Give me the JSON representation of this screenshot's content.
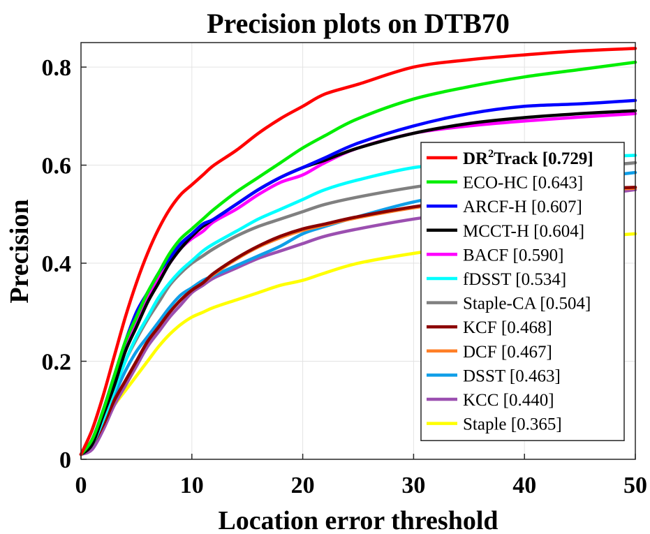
{
  "chart_data": {
    "type": "line",
    "title": "Precision plots on DTB70",
    "xlabel": "Location error threshold",
    "ylabel": "Precision",
    "xlim": [
      0,
      50
    ],
    "ylim": [
      0,
      0.85
    ],
    "xticks": [
      0,
      10,
      20,
      30,
      40,
      50
    ],
    "yticks": [
      0,
      0.2,
      0.4,
      0.6,
      0.8
    ],
    "xtick_labels": [
      "0",
      "10",
      "20",
      "30",
      "40",
      "50"
    ],
    "ytick_labels": [
      "0",
      "0.2",
      "0.4",
      "0.6",
      "0.8"
    ],
    "grid": true,
    "legend_position": "bottom-right",
    "x": [
      0,
      1,
      2,
      3,
      4,
      5,
      6,
      7,
      8,
      9,
      10,
      11,
      12,
      14,
      16,
      18,
      20,
      22,
      25,
      30,
      35,
      40,
      45,
      50
    ],
    "series": [
      {
        "name": "DR²Track [0.729]",
        "legend_main": "DR",
        "legend_sup": "2",
        "legend_rest": "Track [0.729]",
        "bold": true,
        "color": "#ff0000",
        "values": [
          0.01,
          0.06,
          0.13,
          0.21,
          0.29,
          0.36,
          0.42,
          0.47,
          0.51,
          0.54,
          0.56,
          0.58,
          0.6,
          0.63,
          0.665,
          0.695,
          0.72,
          0.745,
          0.765,
          0.8,
          0.815,
          0.825,
          0.833,
          0.838
        ]
      },
      {
        "name": "ECO-HC [0.643]",
        "bold": false,
        "color": "#00ee00",
        "values": [
          0.01,
          0.04,
          0.1,
          0.17,
          0.24,
          0.29,
          0.34,
          0.38,
          0.42,
          0.45,
          0.47,
          0.49,
          0.51,
          0.545,
          0.575,
          0.605,
          0.635,
          0.66,
          0.695,
          0.735,
          0.76,
          0.78,
          0.795,
          0.81
        ]
      },
      {
        "name": "ARCF-H [0.607]",
        "bold": false,
        "color": "#0000ff",
        "values": [
          0.01,
          0.04,
          0.1,
          0.17,
          0.24,
          0.3,
          0.34,
          0.38,
          0.41,
          0.44,
          0.46,
          0.48,
          0.49,
          0.52,
          0.55,
          0.575,
          0.595,
          0.615,
          0.645,
          0.68,
          0.705,
          0.72,
          0.725,
          0.732
        ]
      },
      {
        "name": "MCCT-H [0.604]",
        "bold": false,
        "color": "#000000",
        "values": [
          0.01,
          0.03,
          0.09,
          0.15,
          0.22,
          0.27,
          0.32,
          0.36,
          0.4,
          0.43,
          0.455,
          0.475,
          0.49,
          0.52,
          0.55,
          0.575,
          0.595,
          0.61,
          0.635,
          0.665,
          0.685,
          0.697,
          0.705,
          0.711
        ]
      },
      {
        "name": "BACF [0.590]",
        "bold": false,
        "color": "#ff00ff",
        "values": [
          0.01,
          0.04,
          0.1,
          0.17,
          0.23,
          0.28,
          0.33,
          0.37,
          0.4,
          0.43,
          0.45,
          0.465,
          0.485,
          0.51,
          0.54,
          0.565,
          0.58,
          0.605,
          0.635,
          0.665,
          0.68,
          0.69,
          0.698,
          0.705
        ]
      },
      {
        "name": "fDSST [0.534]",
        "bold": false,
        "color": "#00ffff",
        "values": [
          0.01,
          0.03,
          0.08,
          0.14,
          0.2,
          0.25,
          0.29,
          0.33,
          0.36,
          0.385,
          0.405,
          0.425,
          0.44,
          0.465,
          0.49,
          0.51,
          0.53,
          0.55,
          0.57,
          0.595,
          0.605,
          0.612,
          0.616,
          0.62
        ]
      },
      {
        "name": "Staple-CA [0.504]",
        "bold": false,
        "color": "#808080",
        "values": [
          0.01,
          0.03,
          0.08,
          0.14,
          0.2,
          0.245,
          0.285,
          0.32,
          0.355,
          0.38,
          0.4,
          0.415,
          0.43,
          0.455,
          0.475,
          0.49,
          0.505,
          0.52,
          0.535,
          0.555,
          0.57,
          0.585,
          0.595,
          0.605
        ]
      },
      {
        "name": "KCF [0.468]",
        "bold": false,
        "color": "#8b0000",
        "values": [
          0.01,
          0.03,
          0.07,
          0.12,
          0.16,
          0.2,
          0.24,
          0.27,
          0.3,
          0.325,
          0.345,
          0.36,
          0.38,
          0.41,
          0.435,
          0.455,
          0.47,
          0.48,
          0.495,
          0.515,
          0.53,
          0.54,
          0.55,
          0.555
        ]
      },
      {
        "name": "DCF [0.467]",
        "bold": false,
        "color": "#ff7f27",
        "values": [
          0.01,
          0.03,
          0.07,
          0.12,
          0.16,
          0.2,
          0.24,
          0.27,
          0.3,
          0.325,
          0.345,
          0.36,
          0.378,
          0.408,
          0.433,
          0.452,
          0.467,
          0.478,
          0.493,
          0.513,
          0.528,
          0.538,
          0.548,
          0.553
        ]
      },
      {
        "name": "DSST [0.463]",
        "bold": false,
        "color": "#0f9ee8",
        "values": [
          0.01,
          0.03,
          0.08,
          0.13,
          0.18,
          0.22,
          0.25,
          0.28,
          0.31,
          0.335,
          0.35,
          0.365,
          0.375,
          0.395,
          0.415,
          0.435,
          0.46,
          0.475,
          0.495,
          0.525,
          0.545,
          0.56,
          0.572,
          0.585
        ]
      },
      {
        "name": "KCC [0.440]",
        "bold": false,
        "color": "#9b4fb0",
        "values": [
          0.01,
          0.02,
          0.06,
          0.11,
          0.15,
          0.19,
          0.23,
          0.26,
          0.29,
          0.315,
          0.34,
          0.355,
          0.37,
          0.39,
          0.41,
          0.425,
          0.44,
          0.455,
          0.47,
          0.49,
          0.505,
          0.52,
          0.535,
          0.55
        ]
      },
      {
        "name": "Staple [0.365]",
        "bold": false,
        "color": "#ffff00",
        "values": [
          0.01,
          0.03,
          0.07,
          0.11,
          0.14,
          0.17,
          0.2,
          0.23,
          0.255,
          0.275,
          0.29,
          0.3,
          0.31,
          0.325,
          0.34,
          0.355,
          0.365,
          0.38,
          0.4,
          0.42,
          0.435,
          0.445,
          0.452,
          0.46
        ]
      }
    ]
  }
}
